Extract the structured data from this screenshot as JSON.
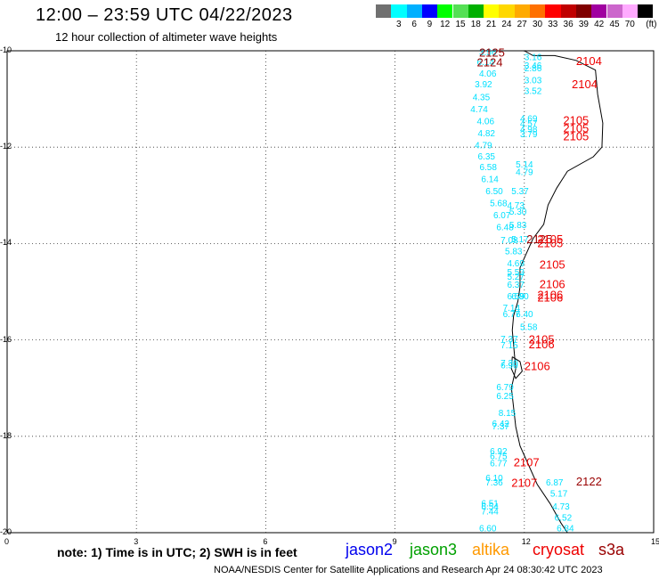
{
  "header": {
    "title": "12:00 – 23:59 UTC 04/22/2023",
    "subtitle": "12 hour collection of altimeter wave heights"
  },
  "colorbar": {
    "unit_label": "(ft)",
    "levels": [
      {
        "label": "",
        "color": "#707070"
      },
      {
        "label": "3",
        "color": "#00ffff"
      },
      {
        "label": "6",
        "color": "#00b0ff"
      },
      {
        "label": "9",
        "color": "#0000ff"
      },
      {
        "label": "12",
        "color": "#00ff00"
      },
      {
        "label": "15",
        "color": "#55e055"
      },
      {
        "label": "18",
        "color": "#00b000"
      },
      {
        "label": "21",
        "color": "#ffff00"
      },
      {
        "label": "24",
        "color": "#ffd800"
      },
      {
        "label": "27",
        "color": "#ffaa00"
      },
      {
        "label": "30",
        "color": "#ff7000"
      },
      {
        "label": "33",
        "color": "#ff0000"
      },
      {
        "label": "36",
        "color": "#c00000"
      },
      {
        "label": "39",
        "color": "#800000"
      },
      {
        "label": "42",
        "color": "#a000a0"
      },
      {
        "label": "45",
        "color": "#cc66cc"
      },
      {
        "label": "70",
        "color": "#ffaaff"
      },
      {
        "label": "",
        "color": "#000000"
      }
    ]
  },
  "map": {
    "lat_labels": [
      "-10",
      "-12",
      "-14",
      "-16",
      "-18",
      "-20"
    ],
    "lon_labels": [
      "0",
      "3",
      "6",
      "9",
      "12",
      "15"
    ],
    "lon_range": [
      0,
      15
    ],
    "lat_range": [
      -10,
      -20
    ],
    "coast": [
      [
        12.0,
        -10.0
      ],
      [
        12.2,
        -10.1
      ],
      [
        12.7,
        -10.1
      ],
      [
        13.2,
        -10.2
      ],
      [
        13.65,
        -10.4
      ],
      [
        13.7,
        -10.9
      ],
      [
        13.82,
        -11.5
      ],
      [
        13.8,
        -12.0
      ],
      [
        13.6,
        -12.2
      ],
      [
        13.0,
        -12.5
      ],
      [
        12.75,
        -12.85
      ],
      [
        12.55,
        -13.2
      ],
      [
        12.45,
        -13.6
      ],
      [
        12.2,
        -13.9
      ],
      [
        12.05,
        -14.2
      ],
      [
        11.9,
        -14.5
      ],
      [
        11.9,
        -14.9
      ],
      [
        11.85,
        -15.2
      ],
      [
        11.75,
        -15.5
      ],
      [
        11.72,
        -15.8
      ],
      [
        11.76,
        -16.2
      ],
      [
        11.8,
        -16.6
      ],
      [
        11.7,
        -17.0
      ],
      [
        11.75,
        -17.4
      ],
      [
        11.8,
        -17.8
      ],
      [
        11.9,
        -18.2
      ],
      [
        12.1,
        -18.6
      ],
      [
        12.3,
        -19.0
      ],
      [
        12.6,
        -19.4
      ],
      [
        12.85,
        -19.8
      ],
      [
        13.0,
        -20.0
      ]
    ],
    "coast_islands": [
      [
        [
          11.72,
          -16.35
        ],
        [
          11.9,
          -16.45
        ],
        [
          11.95,
          -16.65
        ],
        [
          11.8,
          -16.8
        ],
        [
          11.7,
          -16.6
        ],
        [
          11.72,
          -16.35
        ]
      ]
    ],
    "wave_labels": [
      {
        "text": "3.56",
        "lon": 10.95,
        "lat": -10.02,
        "color": "#00e0ff"
      },
      {
        "text": "6.14",
        "lon": 10.9,
        "lat": -10.22,
        "color": "#00e0ff"
      },
      {
        "text": "4.06",
        "lon": 10.95,
        "lat": -10.46,
        "color": "#00e0ff"
      },
      {
        "text": "3.92",
        "lon": 10.85,
        "lat": -10.68,
        "color": "#00e0ff"
      },
      {
        "text": "4.35",
        "lon": 10.8,
        "lat": -10.95,
        "color": "#00e0ff"
      },
      {
        "text": "4.74",
        "lon": 10.75,
        "lat": -11.2,
        "color": "#00e0ff"
      },
      {
        "text": "4.06",
        "lon": 10.9,
        "lat": -11.45,
        "color": "#00e0ff"
      },
      {
        "text": "4.82",
        "lon": 10.92,
        "lat": -11.7,
        "color": "#00e0ff"
      },
      {
        "text": "4.79",
        "lon": 10.85,
        "lat": -11.95,
        "color": "#00e0ff"
      },
      {
        "text": "6.35",
        "lon": 10.92,
        "lat": -12.18,
        "color": "#00e0ff"
      },
      {
        "text": "6.58",
        "lon": 10.96,
        "lat": -12.4,
        "color": "#00e0ff"
      },
      {
        "text": "6.14",
        "lon": 11.0,
        "lat": -12.65,
        "color": "#00e0ff"
      },
      {
        "text": "6.50",
        "lon": 11.1,
        "lat": -12.9,
        "color": "#00e0ff"
      },
      {
        "text": "5.68",
        "lon": 11.2,
        "lat": -13.15,
        "color": "#00e0ff"
      },
      {
        "text": "6.07",
        "lon": 11.28,
        "lat": -13.4,
        "color": "#00e0ff"
      },
      {
        "text": "6.48",
        "lon": 11.35,
        "lat": -13.65,
        "color": "#00e0ff"
      },
      {
        "text": "7.08",
        "lon": 11.45,
        "lat": -13.92,
        "color": "#00e0ff"
      },
      {
        "text": "5.83",
        "lon": 11.55,
        "lat": -14.15,
        "color": "#00e0ff"
      },
      {
        "text": "4.69",
        "lon": 11.6,
        "lat": -14.4,
        "color": "#00e0ff"
      },
      {
        "text": "5.53",
        "lon": 11.6,
        "lat": -14.58,
        "color": "#00e0ff"
      },
      {
        "text": "5.27",
        "lon": 11.6,
        "lat": -14.68,
        "color": "#00e0ff"
      },
      {
        "text": "6.37",
        "lon": 11.6,
        "lat": -14.84,
        "color": "#00e0ff"
      },
      {
        "text": "6.59",
        "lon": 11.6,
        "lat": -15.08,
        "color": "#00e0ff"
      },
      {
        "text": "6.80",
        "lon": 11.7,
        "lat": -15.08,
        "color": "#00e0ff"
      },
      {
        "text": "7.14",
        "lon": 11.5,
        "lat": -15.32,
        "color": "#00e0ff"
      },
      {
        "text": "6.77",
        "lon": 11.5,
        "lat": -15.45,
        "color": "#00e0ff"
      },
      {
        "text": "5.58",
        "lon": 11.9,
        "lat": -15.72,
        "color": "#00e0ff"
      },
      {
        "text": "6.40",
        "lon": 11.8,
        "lat": -15.45,
        "color": "#00e0ff"
      },
      {
        "text": "7.37",
        "lon": 11.45,
        "lat": -15.97,
        "color": "#00e0ff"
      },
      {
        "text": "7.15",
        "lon": 11.45,
        "lat": -16.1,
        "color": "#00e0ff"
      },
      {
        "text": "7.30",
        "lon": 11.45,
        "lat": -16.47,
        "color": "#00e0ff"
      },
      {
        "text": "6.90",
        "lon": 11.45,
        "lat": -16.52,
        "color": "#00e0ff"
      },
      {
        "text": "6.79",
        "lon": 11.35,
        "lat": -16.97,
        "color": "#00e0ff"
      },
      {
        "text": "6.25",
        "lon": 11.35,
        "lat": -17.15,
        "color": "#00e0ff"
      },
      {
        "text": "8.15",
        "lon": 11.4,
        "lat": -17.5,
        "color": "#00e0ff"
      },
      {
        "text": "6.42",
        "lon": 11.25,
        "lat": -17.73,
        "color": "#00e0ff"
      },
      {
        "text": "7.37",
        "lon": 11.25,
        "lat": -17.78,
        "color": "#00e0ff"
      },
      {
        "text": "6.92",
        "lon": 11.2,
        "lat": -18.3,
        "color": "#00e0ff"
      },
      {
        "text": "6.75",
        "lon": 11.2,
        "lat": -18.4,
        "color": "#00e0ff"
      },
      {
        "text": "6.77",
        "lon": 11.2,
        "lat": -18.55,
        "color": "#00e0ff"
      },
      {
        "text": "6.10",
        "lon": 11.1,
        "lat": -18.85,
        "color": "#00e0ff"
      },
      {
        "text": "7.36",
        "lon": 11.1,
        "lat": -18.95,
        "color": "#00e0ff"
      },
      {
        "text": "6.51",
        "lon": 11.0,
        "lat": -19.38,
        "color": "#00e0ff"
      },
      {
        "text": "6.54",
        "lon": 11.0,
        "lat": -19.45,
        "color": "#00e0ff"
      },
      {
        "text": "7.44",
        "lon": 11.0,
        "lat": -19.55,
        "color": "#00e0ff"
      },
      {
        "text": "6.60",
        "lon": 10.95,
        "lat": -19.9,
        "color": "#00e0ff"
      },
      {
        "text": "3.16",
        "lon": 12.0,
        "lat": -10.12,
        "color": "#00e0ff"
      },
      {
        "text": "3.46",
        "lon": 12.0,
        "lat": -10.3,
        "color": "#00e0ff"
      },
      {
        "text": "2.86",
        "lon": 12.0,
        "lat": -10.35,
        "color": "#00e0ff"
      },
      {
        "text": "3.03",
        "lon": 12.0,
        "lat": -10.6,
        "color": "#00e0ff"
      },
      {
        "text": "3.52",
        "lon": 12.0,
        "lat": -10.82,
        "color": "#00e0ff"
      },
      {
        "text": "4.69",
        "lon": 11.9,
        "lat": -11.4,
        "color": "#00e0ff"
      },
      {
        "text": "4.57",
        "lon": 11.9,
        "lat": -11.5,
        "color": "#00e0ff"
      },
      {
        "text": "4.98",
        "lon": 11.9,
        "lat": -11.62,
        "color": "#00e0ff"
      },
      {
        "text": "3.79",
        "lon": 11.9,
        "lat": -11.72,
        "color": "#00e0ff"
      },
      {
        "text": "5.14",
        "lon": 11.8,
        "lat": -12.35,
        "color": "#00e0ff"
      },
      {
        "text": "4.79",
        "lon": 11.8,
        "lat": -12.5,
        "color": "#00e0ff"
      },
      {
        "text": "5.37",
        "lon": 11.7,
        "lat": -12.9,
        "color": "#00e0ff"
      },
      {
        "text": "4.73",
        "lon": 11.6,
        "lat": -13.2,
        "color": "#00e0ff"
      },
      {
        "text": "5.30",
        "lon": 11.65,
        "lat": -13.33,
        "color": "#00e0ff"
      },
      {
        "text": "5.83",
        "lon": 11.65,
        "lat": -13.6,
        "color": "#00e0ff"
      },
      {
        "text": "5.17",
        "lon": 11.7,
        "lat": -13.9,
        "color": "#00e0ff"
      },
      {
        "text": "6.87",
        "lon": 12.5,
        "lat": -18.95,
        "color": "#00e0ff"
      },
      {
        "text": "5.17",
        "lon": 12.6,
        "lat": -19.18,
        "color": "#00e0ff"
      },
      {
        "text": "4.73",
        "lon": 12.65,
        "lat": -19.45,
        "color": "#00e0ff"
      },
      {
        "text": "6.52",
        "lon": 12.7,
        "lat": -19.68,
        "color": "#00e0ff"
      },
      {
        "text": "6.84",
        "lon": 12.75,
        "lat": -19.9,
        "color": "#00e0ff"
      }
    ],
    "time_labels": [
      {
        "text": "2125",
        "lon": 10.95,
        "lat": -10.05,
        "color": "#990000"
      },
      {
        "text": "2124",
        "lon": 10.9,
        "lat": -10.25,
        "color": "#990000"
      },
      {
        "text": "2104",
        "lon": 13.2,
        "lat": -10.22,
        "color": "#ee0000"
      },
      {
        "text": "2104",
        "lon": 13.1,
        "lat": -10.7,
        "color": "#ee0000"
      },
      {
        "text": "2105",
        "lon": 12.9,
        "lat": -11.45,
        "color": "#ee0000"
      },
      {
        "text": "2105",
        "lon": 12.9,
        "lat": -11.62,
        "color": "#ee0000"
      },
      {
        "text": "2105",
        "lon": 12.9,
        "lat": -11.78,
        "color": "#ee0000"
      },
      {
        "text": "2125",
        "lon": 12.05,
        "lat": -13.92,
        "color": "#990000"
      },
      {
        "text": "2105",
        "lon": 12.3,
        "lat": -13.92,
        "color": "#ee0000"
      },
      {
        "text": "2105",
        "lon": 12.3,
        "lat": -14.0,
        "color": "#ee0000"
      },
      {
        "text": "2105",
        "lon": 12.35,
        "lat": -14.45,
        "color": "#ee0000"
      },
      {
        "text": "2106",
        "lon": 12.35,
        "lat": -14.85,
        "color": "#ee0000"
      },
      {
        "text": "2106",
        "lon": 12.3,
        "lat": -15.07,
        "color": "#ee0000"
      },
      {
        "text": "2106",
        "lon": 12.3,
        "lat": -15.13,
        "color": "#ee0000"
      },
      {
        "text": "2105",
        "lon": 12.1,
        "lat": -16.0,
        "color": "#ee0000"
      },
      {
        "text": "2106",
        "lon": 12.1,
        "lat": -16.1,
        "color": "#ee0000"
      },
      {
        "text": "2106",
        "lon": 12.0,
        "lat": -16.55,
        "color": "#ee0000"
      },
      {
        "text": "2107",
        "lon": 11.75,
        "lat": -18.55,
        "color": "#ee0000"
      },
      {
        "text": "2107",
        "lon": 11.7,
        "lat": -18.97,
        "color": "#ee0000"
      },
      {
        "text": "2122",
        "lon": 13.2,
        "lat": -18.95,
        "color": "#990000"
      }
    ]
  },
  "footer": {
    "note": "note: 1) Time is in UTC; 2) SWH is in feet",
    "satellites": [
      {
        "name": "jason2",
        "color": "#0000ee"
      },
      {
        "name": "jason3",
        "color": "#00a000"
      },
      {
        "name": "altika",
        "color": "#ff9900"
      },
      {
        "name": "cryosat",
        "color": "#ee0000"
      },
      {
        "name": "s3a",
        "color": "#990000"
      }
    ],
    "credit": "NOAA/NESDIS Center for Satellite Applications and Research    Apr 24 08:30:42 UTC 2023"
  }
}
